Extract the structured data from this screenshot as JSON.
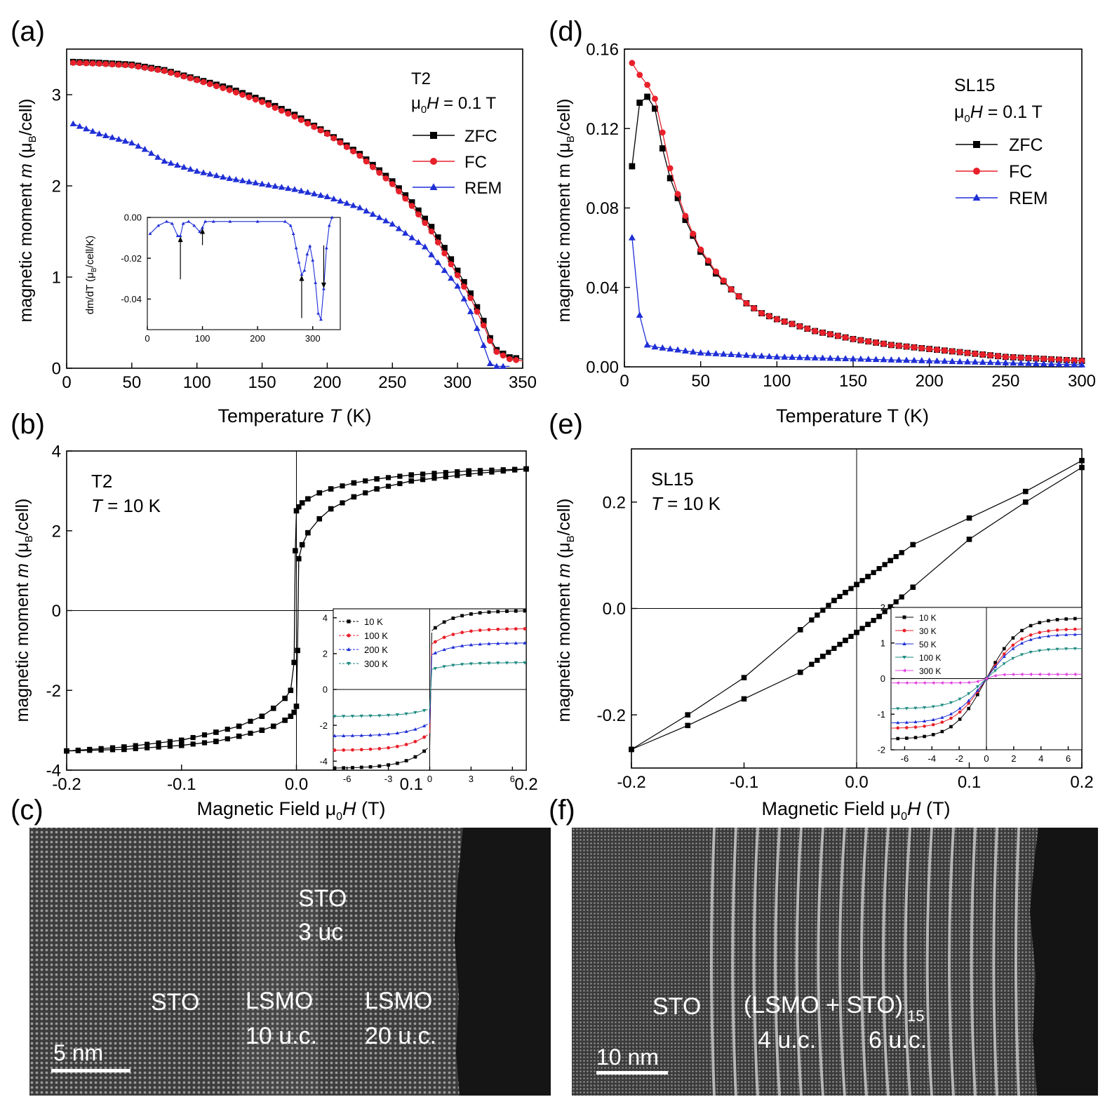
{
  "panels": {
    "a": {
      "tag": "(a)",
      "sample": "T2",
      "field_pre": "μ",
      "field_sub": "0",
      "field_var": "H",
      "field_post": " = 0.1 T"
    },
    "b": {
      "tag": "(b)",
      "sample": "T2",
      "temp_var": "T",
      "temp_post": " = 10 K"
    },
    "c": {
      "tag": "(c)",
      "labels": {
        "sto_top": "STO",
        "uc3": "3 uc",
        "sto_left": "STO",
        "lsmo1": "LSMO",
        "lsmo1_uc": "10 u.c.",
        "lsmo2": "LSMO",
        "lsmo2_uc": "20 u.c."
      },
      "scalebar": "5 nm"
    },
    "d": {
      "tag": "(d)",
      "sample": "SL15",
      "field_pre": "μ",
      "field_sub": "0",
      "field_var": "H",
      "field_post": " = 0.1 T"
    },
    "e": {
      "tag": "(e)",
      "sample": "SL15",
      "temp_var": "T",
      "temp_post": " = 10 K"
    },
    "f": {
      "tag": "(f)",
      "labels": {
        "sto": "STO",
        "superlattice": "(LSMO + STO)",
        "sub15": "15",
        "uc4": "4 u.c.",
        "uc6": "6 u.c."
      },
      "scalebar": "10 nm"
    }
  },
  "axis_text": {
    "ylabel_prefix": "magnetic moment  ",
    "ylabel_m": "m",
    "ylabel_unit_pre": " (μ",
    "ylabel_unit_sub": "B",
    "ylabel_unit_post": "/cell)",
    "ylabel_d": "magnetic moment  m (μ",
    "xlabel_temp_pre": "Temperature  ",
    "xlabel_temp_T": "T",
    "xlabel_temp_post": " (K)",
    "xlabel_temp_d": "Temperature  T (K)",
    "xlabel_field_pre": "Magnetic Field  μ",
    "xlabel_field_sub": "0",
    "xlabel_field_H": "H",
    "xlabel_field_post": " (T)",
    "inset_ylabel_pre": "dm/dT (μ",
    "inset_ylabel_sub": "B",
    "inset_ylabel_post": "/cell/K)"
  },
  "colors": {
    "zfc": "#000000",
    "fc": "#e8202a",
    "rem": "#1f2fd6",
    "c100": "#1b8a80",
    "c300": "#e040e0"
  },
  "chart_data": [
    {
      "id": "a",
      "type": "line",
      "title": "T2  μ0H = 0.1 T",
      "xlabel": "Temperature T (K)",
      "ylabel": "magnetic moment m (μB/cell)",
      "xlim": [
        0,
        350
      ],
      "ylim": [
        0,
        3.5
      ],
      "xticks": [
        0,
        50,
        100,
        150,
        200,
        250,
        300,
        350
      ],
      "yticks": [
        0,
        1,
        2,
        3
      ],
      "legend": [
        "ZFC",
        "FC",
        "REM"
      ],
      "series": [
        {
          "name": "ZFC",
          "marker": "square",
          "x": [
            5,
            25,
            50,
            75,
            100,
            125,
            150,
            175,
            200,
            225,
            250,
            265,
            280,
            290,
            300,
            310,
            320,
            325,
            330,
            340,
            350
          ],
          "y": [
            3.36,
            3.35,
            3.33,
            3.27,
            3.17,
            3.07,
            2.94,
            2.78,
            2.58,
            2.35,
            2.05,
            1.82,
            1.55,
            1.32,
            1.07,
            0.82,
            0.52,
            0.33,
            0.2,
            0.12,
            0.1
          ]
        },
        {
          "name": "FC",
          "marker": "circle",
          "x": [
            5,
            25,
            50,
            75,
            100,
            125,
            150,
            175,
            200,
            225,
            250,
            265,
            280,
            290,
            300,
            310,
            320,
            325,
            330,
            340,
            350
          ],
          "y": [
            3.35,
            3.34,
            3.32,
            3.26,
            3.16,
            3.05,
            2.92,
            2.76,
            2.57,
            2.33,
            2.02,
            1.78,
            1.5,
            1.26,
            1.02,
            0.77,
            0.47,
            0.3,
            0.18,
            0.1,
            0.08
          ]
        },
        {
          "name": "REM",
          "marker": "triangle",
          "x": [
            5,
            25,
            50,
            60,
            75,
            100,
            125,
            150,
            175,
            200,
            225,
            250,
            275,
            300,
            310,
            320,
            325,
            330,
            340
          ],
          "y": [
            2.68,
            2.57,
            2.47,
            2.4,
            2.27,
            2.16,
            2.08,
            2.02,
            1.96,
            1.88,
            1.76,
            1.58,
            1.33,
            0.9,
            0.62,
            0.25,
            0.05,
            0.02,
            0.02
          ]
        }
      ],
      "inset": {
        "xlim": [
          0,
          350
        ],
        "ylim": [
          -0.055,
          0.0
        ],
        "xticks": [
          0,
          100,
          200,
          300
        ],
        "yticks": [
          0.0,
          -0.02,
          -0.04
        ],
        "ytick_labels": [
          "0.00",
          "-0.02",
          "-0.04"
        ],
        "ylabel": "dm/dT (μB/cell/K)",
        "x": [
          5,
          20,
          35,
          45,
          55,
          60,
          65,
          75,
          85,
          95,
          100,
          105,
          120,
          150,
          200,
          250,
          260,
          265,
          270,
          275,
          280,
          285,
          290,
          295,
          300,
          305,
          310,
          315,
          320,
          325,
          330,
          335
        ],
        "y": [
          -0.008,
          -0.004,
          -0.002,
          -0.003,
          -0.009,
          -0.009,
          -0.003,
          -0.002,
          -0.004,
          -0.007,
          -0.005,
          -0.002,
          -0.002,
          -0.002,
          -0.002,
          -0.002,
          -0.004,
          -0.008,
          -0.015,
          -0.022,
          -0.028,
          -0.026,
          -0.018,
          -0.014,
          -0.021,
          -0.032,
          -0.047,
          -0.05,
          -0.035,
          -0.015,
          -0.004,
          0.0
        ],
        "arrows_x": [
          60,
          100,
          280,
          320
        ]
      }
    },
    {
      "id": "b",
      "type": "line",
      "title": "T2  T = 10 K",
      "xlabel": "Magnetic Field μ0H (T)",
      "ylabel": "magnetic moment m (μB/cell)",
      "xlim": [
        -0.2,
        0.2
      ],
      "ylim": [
        -4,
        4
      ],
      "xticks": [
        -0.2,
        -0.1,
        0.0,
        0.1,
        0.2
      ],
      "yticks": [
        -4,
        -2,
        0,
        2,
        4
      ],
      "series": [
        {
          "name": "descending",
          "x": [
            0.2,
            0.15,
            0.1,
            0.07,
            0.05,
            0.03,
            0.02,
            0.01,
            0.005,
            0.002,
            0.0,
            -0.001,
            -0.002,
            -0.005,
            -0.01,
            -0.02,
            -0.03,
            -0.05,
            -0.07,
            -0.1,
            -0.15,
            -0.2
          ],
          "y": [
            3.55,
            3.5,
            3.4,
            3.3,
            3.2,
            3.05,
            2.95,
            2.8,
            2.7,
            2.6,
            2.5,
            1.5,
            -1.3,
            -2.0,
            -2.2,
            -2.45,
            -2.65,
            -2.9,
            -3.05,
            -3.25,
            -3.42,
            -3.52
          ]
        },
        {
          "name": "ascending",
          "x": [
            -0.2,
            -0.15,
            -0.1,
            -0.07,
            -0.05,
            -0.03,
            -0.02,
            -0.01,
            -0.005,
            -0.002,
            0.0,
            0.001,
            0.002,
            0.005,
            0.01,
            0.02,
            0.03,
            0.05,
            0.07,
            0.1,
            0.15,
            0.2
          ],
          "y": [
            -3.52,
            -3.48,
            -3.38,
            -3.28,
            -3.15,
            -3.0,
            -2.9,
            -2.75,
            -2.65,
            -2.55,
            -2.4,
            -1.0,
            1.3,
            1.65,
            1.95,
            2.3,
            2.55,
            2.85,
            3.05,
            3.25,
            3.42,
            3.55
          ]
        }
      ],
      "inset": {
        "xlim": [
          -7,
          7
        ],
        "ylim": [
          -4.5,
          4.5
        ],
        "xticks": [
          -6,
          -3,
          0,
          3,
          6
        ],
        "yticks": [
          -4,
          -2,
          0,
          2,
          4
        ],
        "legend": [
          "10 K",
          "100 K",
          "200 K",
          "300 K"
        ],
        "saturation": [
          4.4,
          3.4,
          2.6,
          1.5
        ]
      }
    },
    {
      "id": "d",
      "type": "line",
      "title": "SL15  μ0H = 0.1 T",
      "xlabel": "Temperature T (K)",
      "ylabel": "magnetic moment m (μB/cell)",
      "xlim": [
        0,
        300
      ],
      "ylim": [
        0,
        0.16
      ],
      "xticks": [
        0,
        50,
        100,
        150,
        200,
        250,
        300
      ],
      "yticks": [
        0.0,
        0.04,
        0.08,
        0.12,
        0.16
      ],
      "ytick_labels": [
        "0.00",
        "0.04",
        "0.08",
        "0.12",
        "0.16"
      ],
      "legend": [
        "ZFC",
        "FC",
        "REM"
      ],
      "series": [
        {
          "name": "ZFC",
          "x": [
            5,
            10,
            15,
            20,
            25,
            30,
            35,
            40,
            45,
            50,
            60,
            70,
            80,
            90,
            100,
            125,
            150,
            175,
            200,
            250,
            300
          ],
          "y": [
            0.101,
            0.133,
            0.136,
            0.13,
            0.11,
            0.095,
            0.085,
            0.074,
            0.066,
            0.058,
            0.047,
            0.039,
            0.032,
            0.027,
            0.024,
            0.018,
            0.014,
            0.011,
            0.009,
            0.005,
            0.003
          ]
        },
        {
          "name": "FC",
          "x": [
            5,
            10,
            15,
            20,
            25,
            30,
            35,
            40,
            45,
            50,
            60,
            70,
            80,
            90,
            100,
            125,
            150,
            175,
            200,
            250,
            300
          ],
          "y": [
            0.153,
            0.147,
            0.142,
            0.135,
            0.118,
            0.1,
            0.087,
            0.076,
            0.067,
            0.059,
            0.048,
            0.039,
            0.032,
            0.027,
            0.024,
            0.018,
            0.014,
            0.011,
            0.009,
            0.005,
            0.003
          ]
        },
        {
          "name": "REM",
          "x": [
            5,
            10,
            15,
            20,
            30,
            50,
            75,
            100,
            150,
            200,
            250,
            300
          ],
          "y": [
            0.065,
            0.026,
            0.011,
            0.01,
            0.009,
            0.007,
            0.006,
            0.005,
            0.004,
            0.003,
            0.002,
            0.001
          ]
        }
      ]
    },
    {
      "id": "e",
      "type": "line",
      "title": "SL15  T = 10 K",
      "xlabel": "Magnetic Field μ0H (T)",
      "ylabel": "magnetic moment m (μB/cell)",
      "xlim": [
        -0.2,
        0.2
      ],
      "ylim": [
        -0.3,
        0.3
      ],
      "xticks": [
        -0.2,
        -0.1,
        0.0,
        0.1,
        0.2
      ],
      "yticks": [
        -0.2,
        0.0,
        0.2
      ],
      "ytick_labels": [
        "-0.2",
        "0.0",
        "0.2"
      ],
      "series": [
        {
          "name": "descending",
          "x": [
            0.2,
            0.15,
            0.1,
            0.05,
            0.03,
            0.01,
            0.0,
            -0.01,
            -0.02,
            -0.05,
            -0.1,
            -0.15,
            -0.2
          ],
          "y": [
            0.278,
            0.22,
            0.17,
            0.12,
            0.09,
            0.06,
            0.045,
            0.03,
            0.015,
            -0.04,
            -0.13,
            -0.2,
            -0.265
          ]
        },
        {
          "name": "ascending",
          "x": [
            -0.2,
            -0.15,
            -0.1,
            -0.05,
            -0.03,
            -0.01,
            0.0,
            0.01,
            0.02,
            0.05,
            0.1,
            0.15,
            0.2
          ],
          "y": [
            -0.265,
            -0.22,
            -0.17,
            -0.12,
            -0.09,
            -0.06,
            -0.045,
            -0.03,
            -0.015,
            0.04,
            0.13,
            0.2,
            0.265
          ]
        }
      ],
      "inset": {
        "xlim": [
          -7,
          7
        ],
        "ylim": [
          -2,
          2
        ],
        "xticks": [
          -6,
          -4,
          -2,
          0,
          2,
          4,
          6
        ],
        "yticks": [
          -2,
          -1,
          0,
          1,
          2
        ],
        "legend": [
          "10 K",
          "30 K",
          "50 K",
          "100 K",
          "300 K"
        ],
        "saturation": [
          1.7,
          1.4,
          1.25,
          0.85,
          0.12
        ]
      }
    }
  ]
}
